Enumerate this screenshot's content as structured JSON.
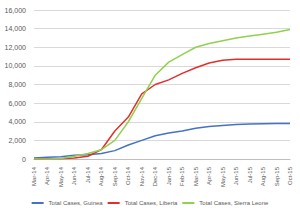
{
  "chart_data": {
    "type": "line",
    "categories": [
      "Mar-14",
      "Apr-14",
      "May-14",
      "Jun-14",
      "Jul-14",
      "Aug-14",
      "Sep-14",
      "Oct-14",
      "Nov-14",
      "Dec-14",
      "Jan-15",
      "Feb-15",
      "Mar-15",
      "Apr-15",
      "May-15",
      "Jun-15",
      "Jul-15",
      "Aug-15",
      "Sep-15",
      "Oct-15"
    ],
    "series": [
      {
        "name": "Total Cases, Guinea",
        "color": "#4472c4",
        "values": [
          100,
          200,
          250,
          400,
          450,
          600,
          900,
          1500,
          2000,
          2500,
          2800,
          3000,
          3300,
          3500,
          3600,
          3700,
          3750,
          3780,
          3800,
          3800
        ]
      },
      {
        "name": "Total Cases, Liberia",
        "color": "#e0302c",
        "values": [
          0,
          30,
          30,
          100,
          300,
          1000,
          3000,
          4500,
          7000,
          8000,
          8500,
          9200,
          9800,
          10300,
          10600,
          10700,
          10700,
          10700,
          10700,
          10700
        ]
      },
      {
        "name": "Total Cases, Sierra Leone",
        "color": "#92d050",
        "values": [
          0,
          0,
          50,
          300,
          600,
          1000,
          2000,
          4000,
          6500,
          9000,
          10400,
          11200,
          12000,
          12400,
          12700,
          13000,
          13200,
          13400,
          13600,
          13900
        ]
      }
    ],
    "ylim": [
      0,
      16000
    ],
    "yticks": [
      0,
      2000,
      4000,
      6000,
      8000,
      10000,
      12000,
      14000,
      16000
    ],
    "grid": true,
    "legend": "bottom",
    "line_style": "solid"
  }
}
